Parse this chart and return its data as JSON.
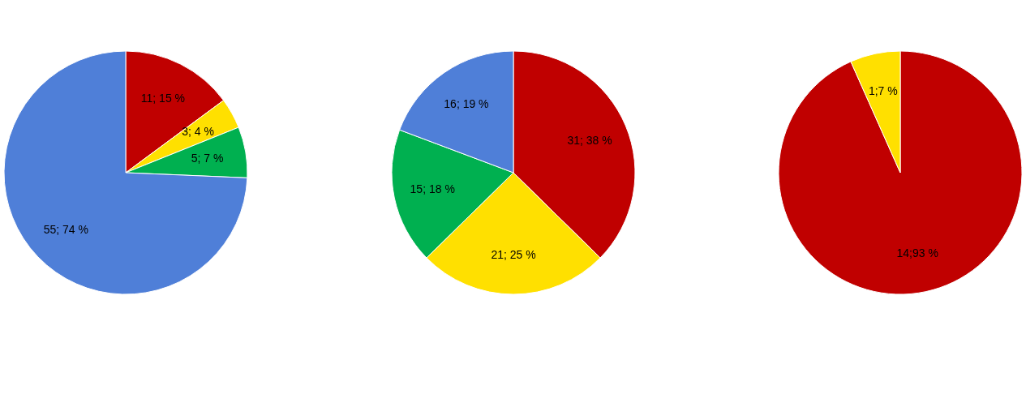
{
  "chart_data": [
    {
      "type": "pie",
      "categories": [
        null,
        null,
        null,
        null
      ],
      "values": [
        11,
        3,
        5,
        55
      ],
      "colors": [
        "#c00000",
        "#ffe000",
        "#00b050",
        "#4f7fd8"
      ],
      "value_labels": [
        "11; 15 %",
        "3; 4 %",
        "5; 7 %",
        "55; 74 %"
      ]
    },
    {
      "type": "pie",
      "categories": [
        null,
        null,
        null,
        null
      ],
      "values": [
        31,
        21,
        15,
        16
      ],
      "colors": [
        "#c00000",
        "#ffe000",
        "#00b050",
        "#4f7fd8"
      ],
      "value_labels": [
        "31; 38 %",
        "21; 25 %",
        "15; 18 %",
        "16; 19 %"
      ]
    },
    {
      "type": "pie",
      "categories": [
        null,
        null
      ],
      "values": [
        14,
        1
      ],
      "colors": [
        "#c00000",
        "#ffe000"
      ],
      "value_labels": [
        "14;93 %",
        "1;7 %"
      ]
    }
  ]
}
